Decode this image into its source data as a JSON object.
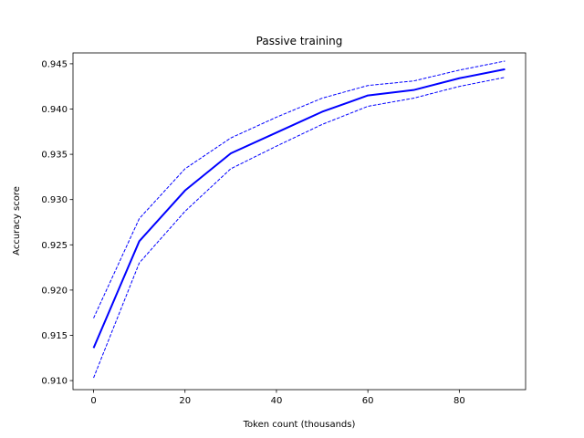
{
  "chart_data": {
    "type": "line",
    "title": "Passive training",
    "xlabel": "Token count (thousands)",
    "ylabel": "Accuracy score",
    "xlim": [
      -4.5,
      94.5
    ],
    "ylim": [
      0.909,
      0.9462
    ],
    "xticks": [
      0,
      20,
      40,
      60,
      80
    ],
    "yticks": [
      0.91,
      0.915,
      0.92,
      0.925,
      0.93,
      0.935,
      0.94,
      0.945
    ],
    "ytick_labels": [
      "0.910",
      "0.915",
      "0.920",
      "0.925",
      "0.930",
      "0.935",
      "0.940",
      "0.945"
    ],
    "grid": false,
    "x": [
      0,
      10,
      20,
      30,
      40,
      50,
      60,
      70,
      80,
      90
    ],
    "series": [
      {
        "role": "mean",
        "style": "solid",
        "color": "#0000ff",
        "values": [
          0.9136,
          0.9254,
          0.931,
          0.9351,
          0.9374,
          0.9397,
          0.9415,
          0.9421,
          0.9434,
          0.9444
        ]
      },
      {
        "role": "upper-bound",
        "style": "dashed",
        "color": "#0000ff",
        "values": [
          0.9169,
          0.9279,
          0.9334,
          0.9368,
          0.9391,
          0.9412,
          0.9426,
          0.9431,
          0.9443,
          0.9453
        ]
      },
      {
        "role": "lower-bound",
        "style": "dashed",
        "color": "#0000ff",
        "values": [
          0.9103,
          0.923,
          0.9287,
          0.9334,
          0.9359,
          0.9383,
          0.9403,
          0.9412,
          0.9425,
          0.9435
        ]
      }
    ]
  }
}
